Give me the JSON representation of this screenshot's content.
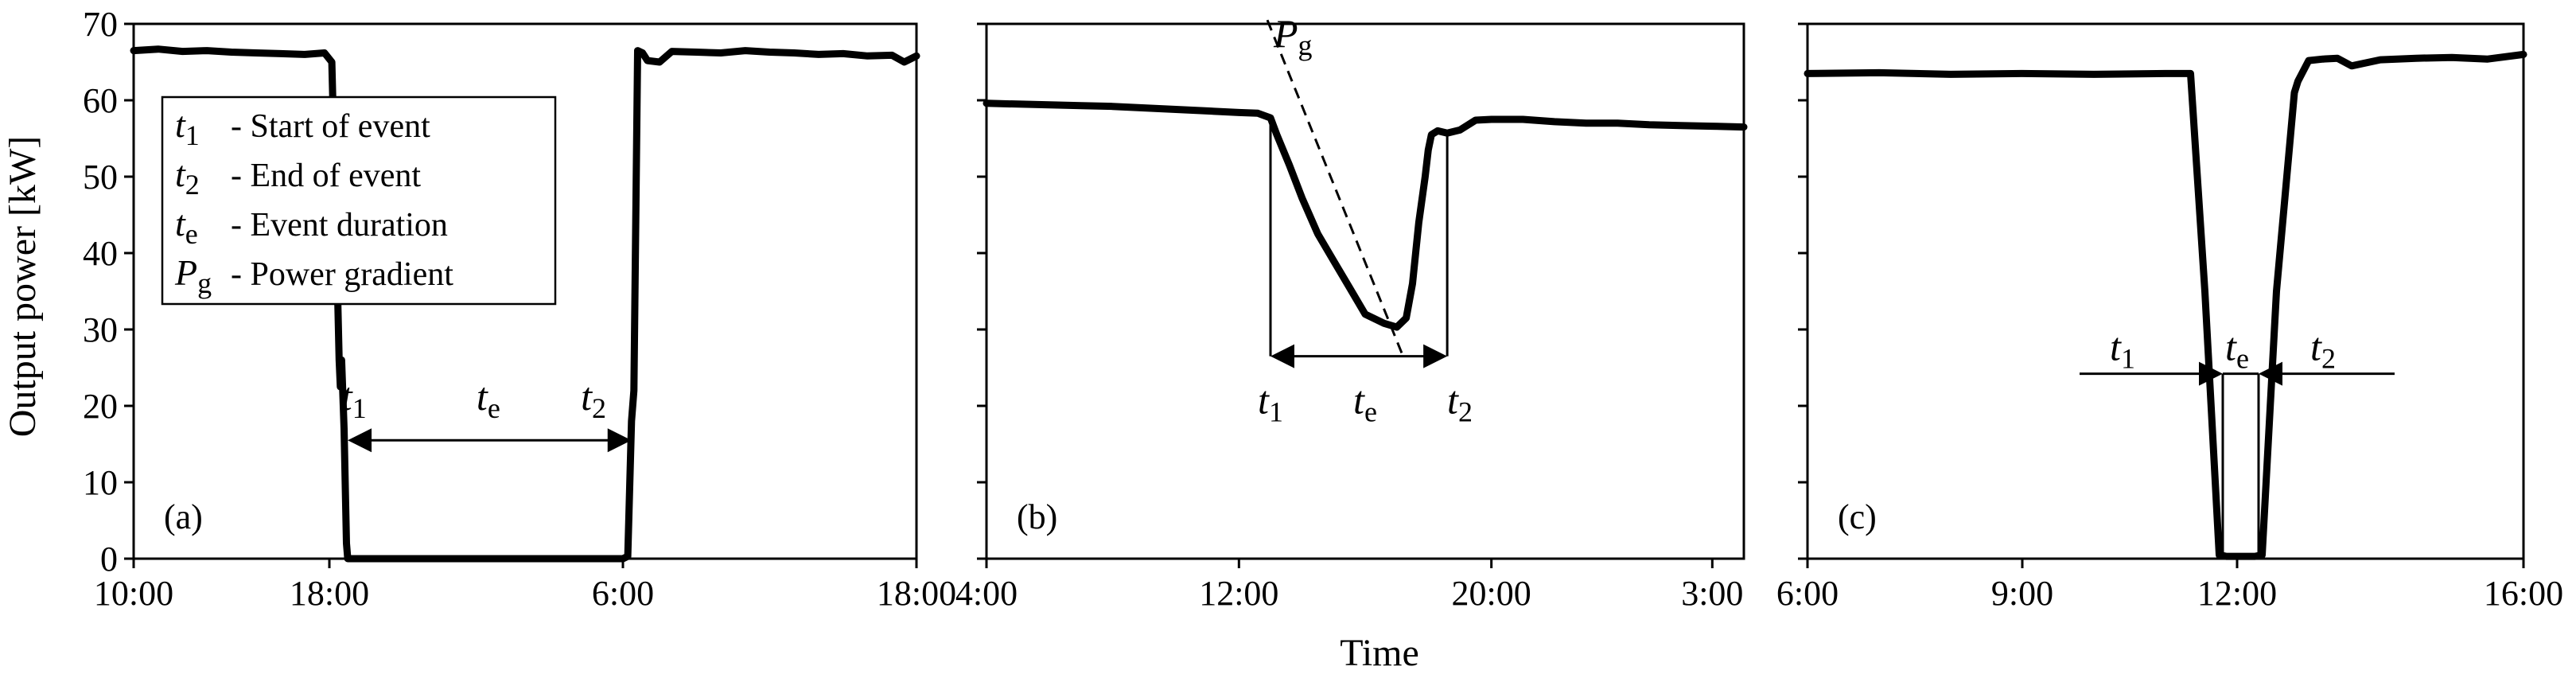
{
  "ylabel": "Output power [kW]",
  "xlabel": "Time",
  "yticks": [
    0,
    10,
    20,
    30,
    40,
    50,
    60,
    70
  ],
  "legend": [
    {
      "sym": "t",
      "sub": "1",
      "text": "- Start of event"
    },
    {
      "sym": "t",
      "sub": "2",
      "text": "- End of event"
    },
    {
      "sym": "t",
      "sub": "e",
      "text": "- Event duration"
    },
    {
      "sym": "P",
      "sub": "g",
      "text": "- Power gradient"
    }
  ],
  "chart_data": [
    {
      "type": "line",
      "panel": "(a)",
      "x_unit": "hours",
      "xlim": [
        10,
        42
      ],
      "ylim": [
        0,
        70
      ],
      "xticks": [
        {
          "label": "10:00",
          "x": 10
        },
        {
          "label": "18:00",
          "x": 18
        },
        {
          "label": "6:00",
          "x": 30
        },
        {
          "label": "18:00",
          "x": 42
        }
      ],
      "series": [
        {
          "x": [
            10,
            11,
            12,
            13,
            14,
            15,
            16,
            17,
            17.8,
            18.1,
            18.3,
            18.4,
            18.45,
            18.5,
            18.6,
            18.7,
            18.75,
            19.0,
            20,
            22,
            24,
            26,
            28,
            29.5,
            30,
            30.2,
            30.35,
            30.45,
            30.6,
            30.8,
            31,
            31.5,
            32,
            33,
            34,
            35,
            36,
            37,
            38,
            39,
            40,
            41,
            41.5,
            42
          ],
          "y": [
            66.5,
            66.7,
            66.4,
            66.5,
            66.3,
            66.2,
            66.1,
            66.0,
            66.2,
            65.0,
            40,
            26,
            22.5,
            26,
            17,
            2,
            0,
            0,
            0,
            0,
            0,
            0,
            0,
            0,
            0,
            0.3,
            18,
            22,
            66.5,
            66.2,
            65.2,
            65.0,
            66.4,
            66.3,
            66.2,
            66.5,
            66.3,
            66.2,
            66.0,
            66.1,
            65.8,
            65.9,
            65.0,
            65.8
          ]
        }
      ],
      "annotations": [
        {
          "text": "t",
          "sub": "1",
          "x": 19.0,
          "y": 19.5
        },
        {
          "text": "t",
          "sub": "e",
          "x": 24.5,
          "y": 19.5
        },
        {
          "text": "t",
          "sub": "2",
          "x": 28.8,
          "y": 19.5
        }
      ],
      "interval": {
        "from": 18.75,
        "to": 30.35,
        "y": 15.5
      }
    },
    {
      "type": "line",
      "panel": "(b)",
      "x_unit": "hours",
      "xlim": [
        4,
        28
      ],
      "ylim": [
        0,
        70
      ],
      "xticks": [
        {
          "label": "4:00",
          "x": 4
        },
        {
          "label": "12:00",
          "x": 12
        },
        {
          "label": "20:00",
          "x": 20
        },
        {
          "label": "3:00",
          "x": 27
        }
      ],
      "series": [
        {
          "x": [
            4,
            5,
            6,
            7,
            8,
            9,
            10,
            11,
            12,
            12.6,
            13.0,
            13.2,
            13.6,
            14.0,
            14.5,
            15.0,
            15.5,
            16.0,
            16.6,
            17.0,
            17.3,
            17.5,
            17.7,
            17.9,
            18.0,
            18.1,
            18.3,
            18.6,
            19.0,
            19.5,
            20,
            21,
            22,
            23,
            24,
            25,
            26,
            27,
            28
          ],
          "y": [
            59.6,
            59.5,
            59.4,
            59.3,
            59.2,
            59.0,
            58.8,
            58.6,
            58.4,
            58.3,
            57.7,
            55.5,
            51.5,
            47.2,
            42.5,
            39.0,
            35.5,
            32.0,
            30.8,
            30.3,
            31.5,
            36,
            44,
            50,
            53.5,
            55.5,
            56.0,
            55.7,
            56.1,
            57.4,
            57.5,
            57.5,
            57.2,
            57.0,
            57.0,
            56.8,
            56.7,
            56.6,
            56.5
          ]
        }
      ],
      "pg_line": {
        "x1": 12.9,
        "y1": 70.5,
        "x2": 17.2,
        "y2": 26.5
      },
      "annotations": [
        {
          "text": "P",
          "sub": "g",
          "x": 13.1,
          "y": 67.0
        },
        {
          "text": "t",
          "sub": "1",
          "x": 13.0,
          "y": 19.0
        },
        {
          "text": "t",
          "sub": "e",
          "x": 16.0,
          "y": 19.0
        },
        {
          "text": "t",
          "sub": "2",
          "x": 19.0,
          "y": 19.0
        }
      ],
      "vlines": [
        {
          "x": 13.0,
          "y1": 26.5,
          "y2": 58.0
        },
        {
          "x": 18.6,
          "y1": 26.5,
          "y2": 55.8
        }
      ],
      "interval": {
        "from": 13.0,
        "to": 18.6,
        "y": 26.5
      }
    },
    {
      "type": "line",
      "panel": "(c)",
      "x_unit": "hours",
      "xlim": [
        6,
        16
      ],
      "ylim": [
        0,
        70
      ],
      "xticks": [
        {
          "label": "6:00",
          "x": 6
        },
        {
          "label": "9:00",
          "x": 9
        },
        {
          "label": "12:00",
          "x": 12
        },
        {
          "label": "16:00",
          "x": 16
        }
      ],
      "series": [
        {
          "x": [
            6,
            7,
            8,
            9,
            10,
            11,
            11.35,
            11.55,
            11.75,
            11.85,
            12.25,
            12.35,
            12.55,
            12.8,
            12.85,
            13,
            13.2,
            13.4,
            13.6,
            14,
            14.5,
            15,
            15.5,
            16
          ],
          "y": [
            63.5,
            63.6,
            63.4,
            63.5,
            63.4,
            63.5,
            63.5,
            35,
            0.5,
            0.3,
            0.3,
            0.5,
            35,
            61,
            62.5,
            65.2,
            65.4,
            65.5,
            64.5,
            65.3,
            65.5,
            65.6,
            65.4,
            66.0
          ]
        }
      ],
      "annotations": [
        {
          "text": "t",
          "sub": "1",
          "x": 10.4,
          "y": 26.0
        },
        {
          "text": "t",
          "sub": "e",
          "x": 12.0,
          "y": 26.0
        },
        {
          "text": "t",
          "sub": "2",
          "x": 13.2,
          "y": 26.0
        }
      ],
      "vlines": [
        {
          "x": 11.8,
          "y1": 0.3,
          "y2": 24.2
        },
        {
          "x": 12.3,
          "y1": 0.3,
          "y2": 24.2
        }
      ],
      "interval": {
        "from": 11.8,
        "to": 12.3,
        "y": 24.2,
        "outer_from": 9.8,
        "outer_to": 14.2
      }
    }
  ]
}
